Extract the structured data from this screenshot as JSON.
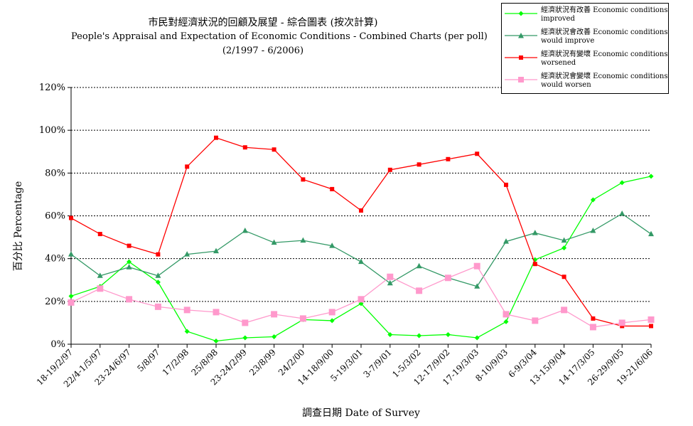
{
  "chart_data": {
    "type": "line",
    "title": "市民對經濟狀況的回顧及展望 - 綜合圖表 (按次計算)",
    "subtitle": "People's Appraisal and Expectation of Economic Conditions - Combined Charts  (per poll)",
    "subtitle2": "(2/1997 - 6/2006)",
    "xlabel": "調查日期 Date of Survey",
    "ylabel": "百分比 Percentage",
    "ylim": [
      0,
      120
    ],
    "yticks": [
      "0%",
      "20%",
      "40%",
      "60%",
      "80%",
      "100%",
      "120%"
    ],
    "grid": true,
    "legend_position": "top-right",
    "categories": [
      "18-19/2/97",
      "22/4-1/5/97",
      "23-24/6/97",
      "5/8/97",
      "17/2/98",
      "25/8/98",
      "23-24/2/99",
      "23/8/99",
      "24/2/00",
      "14-18/9/00",
      "5-19/3/01",
      "3-7/9/01",
      "1-5/3/02",
      "12-17/9/02",
      "17-19/3/03",
      "8-10/9/03",
      "6-9/3/04",
      "13-15/9/04",
      "14-17/3/05",
      "26-29/9/05",
      "19-21/6/06"
    ],
    "series": [
      {
        "name": "經濟狀況有改善 Economic conditions improved",
        "color": "#00ff00",
        "marker": "diamond",
        "values": [
          22.5,
          27,
          38.5,
          29,
          6,
          1.5,
          3,
          3.5,
          11.5,
          11,
          19,
          4.5,
          4,
          4.5,
          3,
          10.5,
          39.5,
          45,
          67.5,
          75.5,
          78.5
        ]
      },
      {
        "name": "經濟狀況會改善 Economic conditions would improve",
        "color": "#339966",
        "marker": "triangle",
        "values": [
          42,
          32,
          36,
          32,
          42,
          43.5,
          53,
          47.5,
          48.5,
          46,
          38.5,
          28.5,
          36.5,
          31,
          27,
          48,
          52,
          48.5,
          53,
          61,
          51.5
        ]
      },
      {
        "name": "經濟狀況有變壞 Economic conditions worsened",
        "color": "#ff0000",
        "marker": "square",
        "values": [
          59,
          51.5,
          46,
          42,
          83,
          96.5,
          92,
          91,
          77,
          72.5,
          62.5,
          81.5,
          84,
          86.5,
          89,
          74.5,
          37.5,
          31.5,
          12,
          8.5,
          8.5
        ]
      },
      {
        "name": "經濟狀況會變壞 Economic conditions would worsen",
        "color": "#ff99cc",
        "marker": "square-large",
        "values": [
          19.5,
          26,
          21,
          17.5,
          16,
          15,
          10,
          14,
          12,
          15,
          21,
          31.5,
          25,
          31,
          36.5,
          14,
          11,
          16,
          8,
          10,
          11.5
        ]
      }
    ]
  },
  "legend": [
    {
      "label_line1": "經濟狀況有改善 Economic conditions",
      "label_line2": "improved"
    },
    {
      "label_line1": "經濟狀況會改善 Economic conditions",
      "label_line2": "would improve"
    },
    {
      "label_line1": "經濟狀況有變壞 Economic conditions",
      "label_line2": "worsened"
    },
    {
      "label_line1": "經濟狀況會變壞 Economic conditions",
      "label_line2": "would worsen"
    }
  ]
}
